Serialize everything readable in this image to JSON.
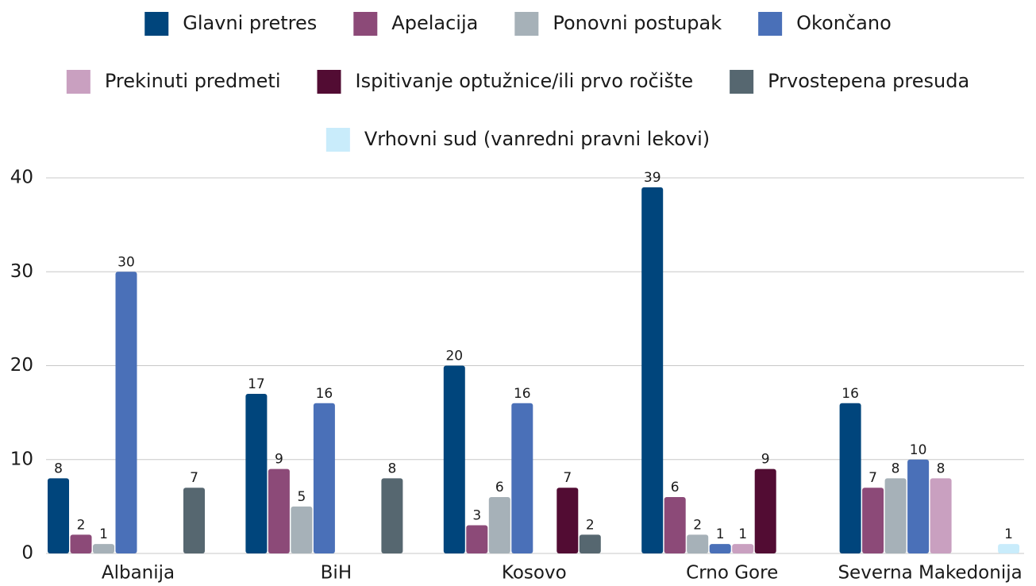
{
  "chart_data": {
    "type": "bar",
    "categories": [
      "Albanija",
      "BiH",
      "Kosovo",
      "Crno Gore",
      "Severna Makedonija"
    ],
    "series": [
      {
        "name": "Glavni pretres",
        "color": "#00457c",
        "values": [
          8,
          17,
          20,
          39,
          16
        ]
      },
      {
        "name": "Apelacija",
        "color": "#8c4a78",
        "values": [
          2,
          9,
          3,
          6,
          7
        ]
      },
      {
        "name": "Ponovni postupak",
        "color": "#a6b1b8",
        "values": [
          1,
          5,
          6,
          2,
          8
        ]
      },
      {
        "name": "Okončano",
        "color": "#4a70b8",
        "values": [
          30,
          16,
          16,
          1,
          10
        ]
      },
      {
        "name": "Prekinuti predmeti",
        "color": "#c9a0c0",
        "values": [
          null,
          null,
          null,
          1,
          8
        ]
      },
      {
        "name": "Ispitivanje optužnice/ili prvo ročište",
        "color": "#520c33",
        "values": [
          null,
          null,
          7,
          9,
          null
        ]
      },
      {
        "name": "Prvostepena presuda",
        "color": "#566770",
        "values": [
          7,
          8,
          2,
          null,
          null
        ]
      },
      {
        "name": "Vrhovni sud (vanredni pravni lekovi)",
        "color": "#c9ecfb",
        "values": [
          null,
          null,
          null,
          null,
          1
        ]
      }
    ],
    "ylim": [
      0,
      40
    ],
    "yticks": [
      0,
      10,
      20,
      30,
      40
    ],
    "grid": true,
    "legend": "top"
  }
}
